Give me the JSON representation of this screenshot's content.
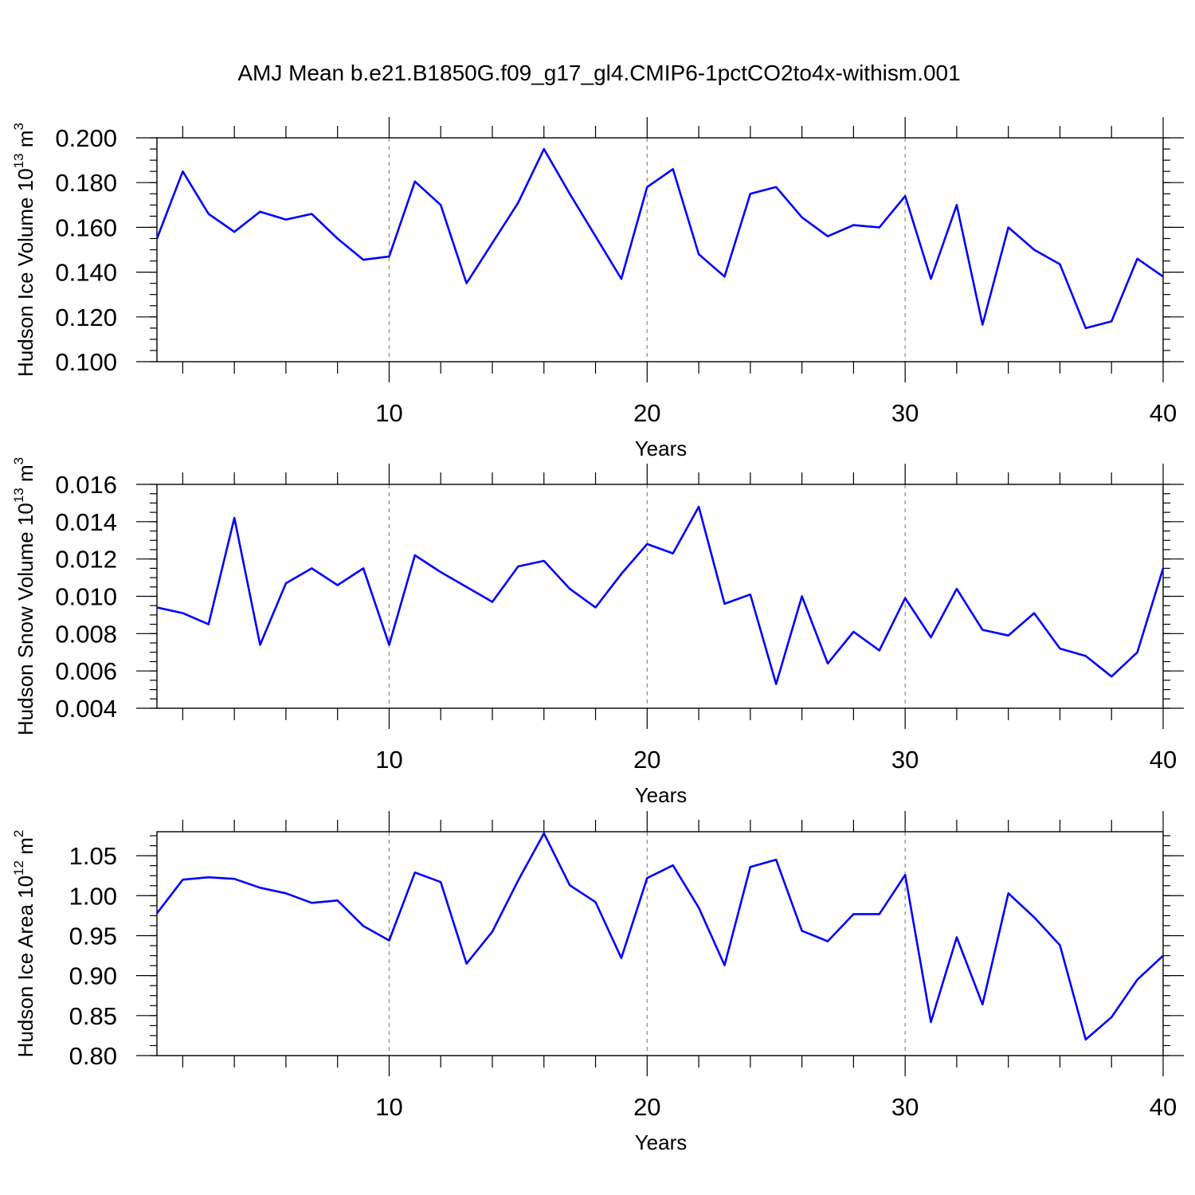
{
  "chart_data": {
    "type": "line",
    "title": "AMJ Mean b.e21.B1850G.f09_g17_gl4.CMIP6-1pctCO2to4x-withism.001",
    "grid": "vertical dashed at major x ticks",
    "series_color": "#0000ff",
    "panels": [
      {
        "ylabel": "Hudson Ice Volume",
        "yunit_base": "10",
        "yunit_exp": "13",
        "yunit_suffix": "m",
        "yunit_suffix_exp": "3",
        "xlabel": "Years",
        "xlim": [
          1,
          40
        ],
        "xticks": [
          10,
          20,
          30,
          40
        ],
        "xtick_labels": [
          "10",
          "20",
          "30",
          "40"
        ],
        "ylim": [
          0.1,
          0.2
        ],
        "yticks": [
          0.1,
          0.12,
          0.14,
          0.16,
          0.18,
          0.2
        ],
        "ytick_labels": [
          "0.100",
          "0.120",
          "0.140",
          "0.160",
          "0.180",
          "0.200"
        ],
        "yminor": 0.005,
        "x": [
          1,
          2,
          3,
          4,
          5,
          6,
          7,
          8,
          9,
          10,
          11,
          12,
          13,
          14,
          15,
          16,
          17,
          18,
          19,
          20,
          21,
          22,
          23,
          24,
          25,
          26,
          27,
          28,
          29,
          30,
          31,
          32,
          33,
          34,
          35,
          36,
          37,
          38,
          39,
          40
        ],
        "y": [
          0.155,
          0.185,
          0.166,
          0.158,
          0.167,
          0.1635,
          0.166,
          0.155,
          0.1455,
          0.147,
          0.1805,
          0.17,
          0.135,
          0.153,
          0.171,
          0.195,
          0.175,
          0.156,
          0.137,
          0.178,
          0.186,
          0.148,
          0.138,
          0.175,
          0.178,
          0.1645,
          0.156,
          0.161,
          0.16,
          0.174,
          0.137,
          0.17,
          0.1165,
          0.16,
          0.15,
          0.1435,
          0.115,
          0.118,
          0.146,
          0.138
        ]
      },
      {
        "ylabel": "Hudson Snow Volume",
        "yunit_base": "10",
        "yunit_exp": "13",
        "yunit_suffix": "m",
        "yunit_suffix_exp": "3",
        "xlabel": "Years",
        "xlim": [
          1,
          40
        ],
        "xticks": [
          10,
          20,
          30,
          40
        ],
        "xtick_labels": [
          "10",
          "20",
          "30",
          "40"
        ],
        "ylim": [
          0.004,
          0.016
        ],
        "yticks": [
          0.004,
          0.006,
          0.008,
          0.01,
          0.012,
          0.014,
          0.016
        ],
        "ytick_labels": [
          "0.004",
          "0.006",
          "0.008",
          "0.010",
          "0.012",
          "0.014",
          "0.016"
        ],
        "yminor": 0.0005,
        "x": [
          1,
          2,
          3,
          4,
          5,
          6,
          7,
          8,
          9,
          10,
          11,
          12,
          13,
          14,
          15,
          16,
          17,
          18,
          19,
          20,
          21,
          22,
          23,
          24,
          25,
          26,
          27,
          28,
          29,
          30,
          31,
          32,
          33,
          34,
          35,
          36,
          37,
          38,
          39,
          40
        ],
        "y": [
          0.0094,
          0.0091,
          0.0085,
          0.0142,
          0.0074,
          0.0107,
          0.0115,
          0.0106,
          0.0115,
          0.0074,
          0.0122,
          0.0113,
          0.0105,
          0.0097,
          0.0116,
          0.0119,
          0.0104,
          0.0094,
          0.0112,
          0.0128,
          0.0123,
          0.0148,
          0.0096,
          0.0101,
          0.0053,
          0.01,
          0.0064,
          0.0081,
          0.0071,
          0.0099,
          0.0078,
          0.0104,
          0.0082,
          0.0079,
          0.0091,
          0.0072,
          0.0068,
          0.0057,
          0.007,
          0.0115
        ]
      },
      {
        "ylabel": "Hudson Ice Area",
        "yunit_base": "10",
        "yunit_exp": "12",
        "yunit_suffix": "m",
        "yunit_suffix_exp": "2",
        "xlabel": "Years",
        "xlim": [
          1,
          40
        ],
        "xticks": [
          10,
          20,
          30,
          40
        ],
        "xtick_labels": [
          "10",
          "20",
          "30",
          "40"
        ],
        "ylim": [
          0.8,
          1.08
        ],
        "yticks": [
          0.8,
          0.85,
          0.9,
          0.95,
          1.0,
          1.05
        ],
        "ytick_labels": [
          "0.80",
          "0.85",
          "0.90",
          "0.95",
          "1.00",
          "1.05"
        ],
        "yminor": 0.0125,
        "x": [
          1,
          2,
          3,
          4,
          5,
          6,
          7,
          8,
          9,
          10,
          11,
          12,
          13,
          14,
          15,
          16,
          17,
          18,
          19,
          20,
          21,
          22,
          23,
          24,
          25,
          26,
          27,
          28,
          29,
          30,
          31,
          32,
          33,
          34,
          35,
          36,
          37,
          38,
          39,
          40
        ],
        "y": [
          0.978,
          1.02,
          1.023,
          1.021,
          1.01,
          1.003,
          0.991,
          0.994,
          0.962,
          0.944,
          1.029,
          1.017,
          0.915,
          0.955,
          1.019,
          1.078,
          1.013,
          0.992,
          0.922,
          1.022,
          1.038,
          0.985,
          0.913,
          1.036,
          1.045,
          0.956,
          0.943,
          0.977,
          0.977,
          1.026,
          0.842,
          0.948,
          0.864,
          1.003,
          0.973,
          0.938,
          0.82,
          0.848,
          0.895,
          0.925
        ]
      }
    ]
  }
}
